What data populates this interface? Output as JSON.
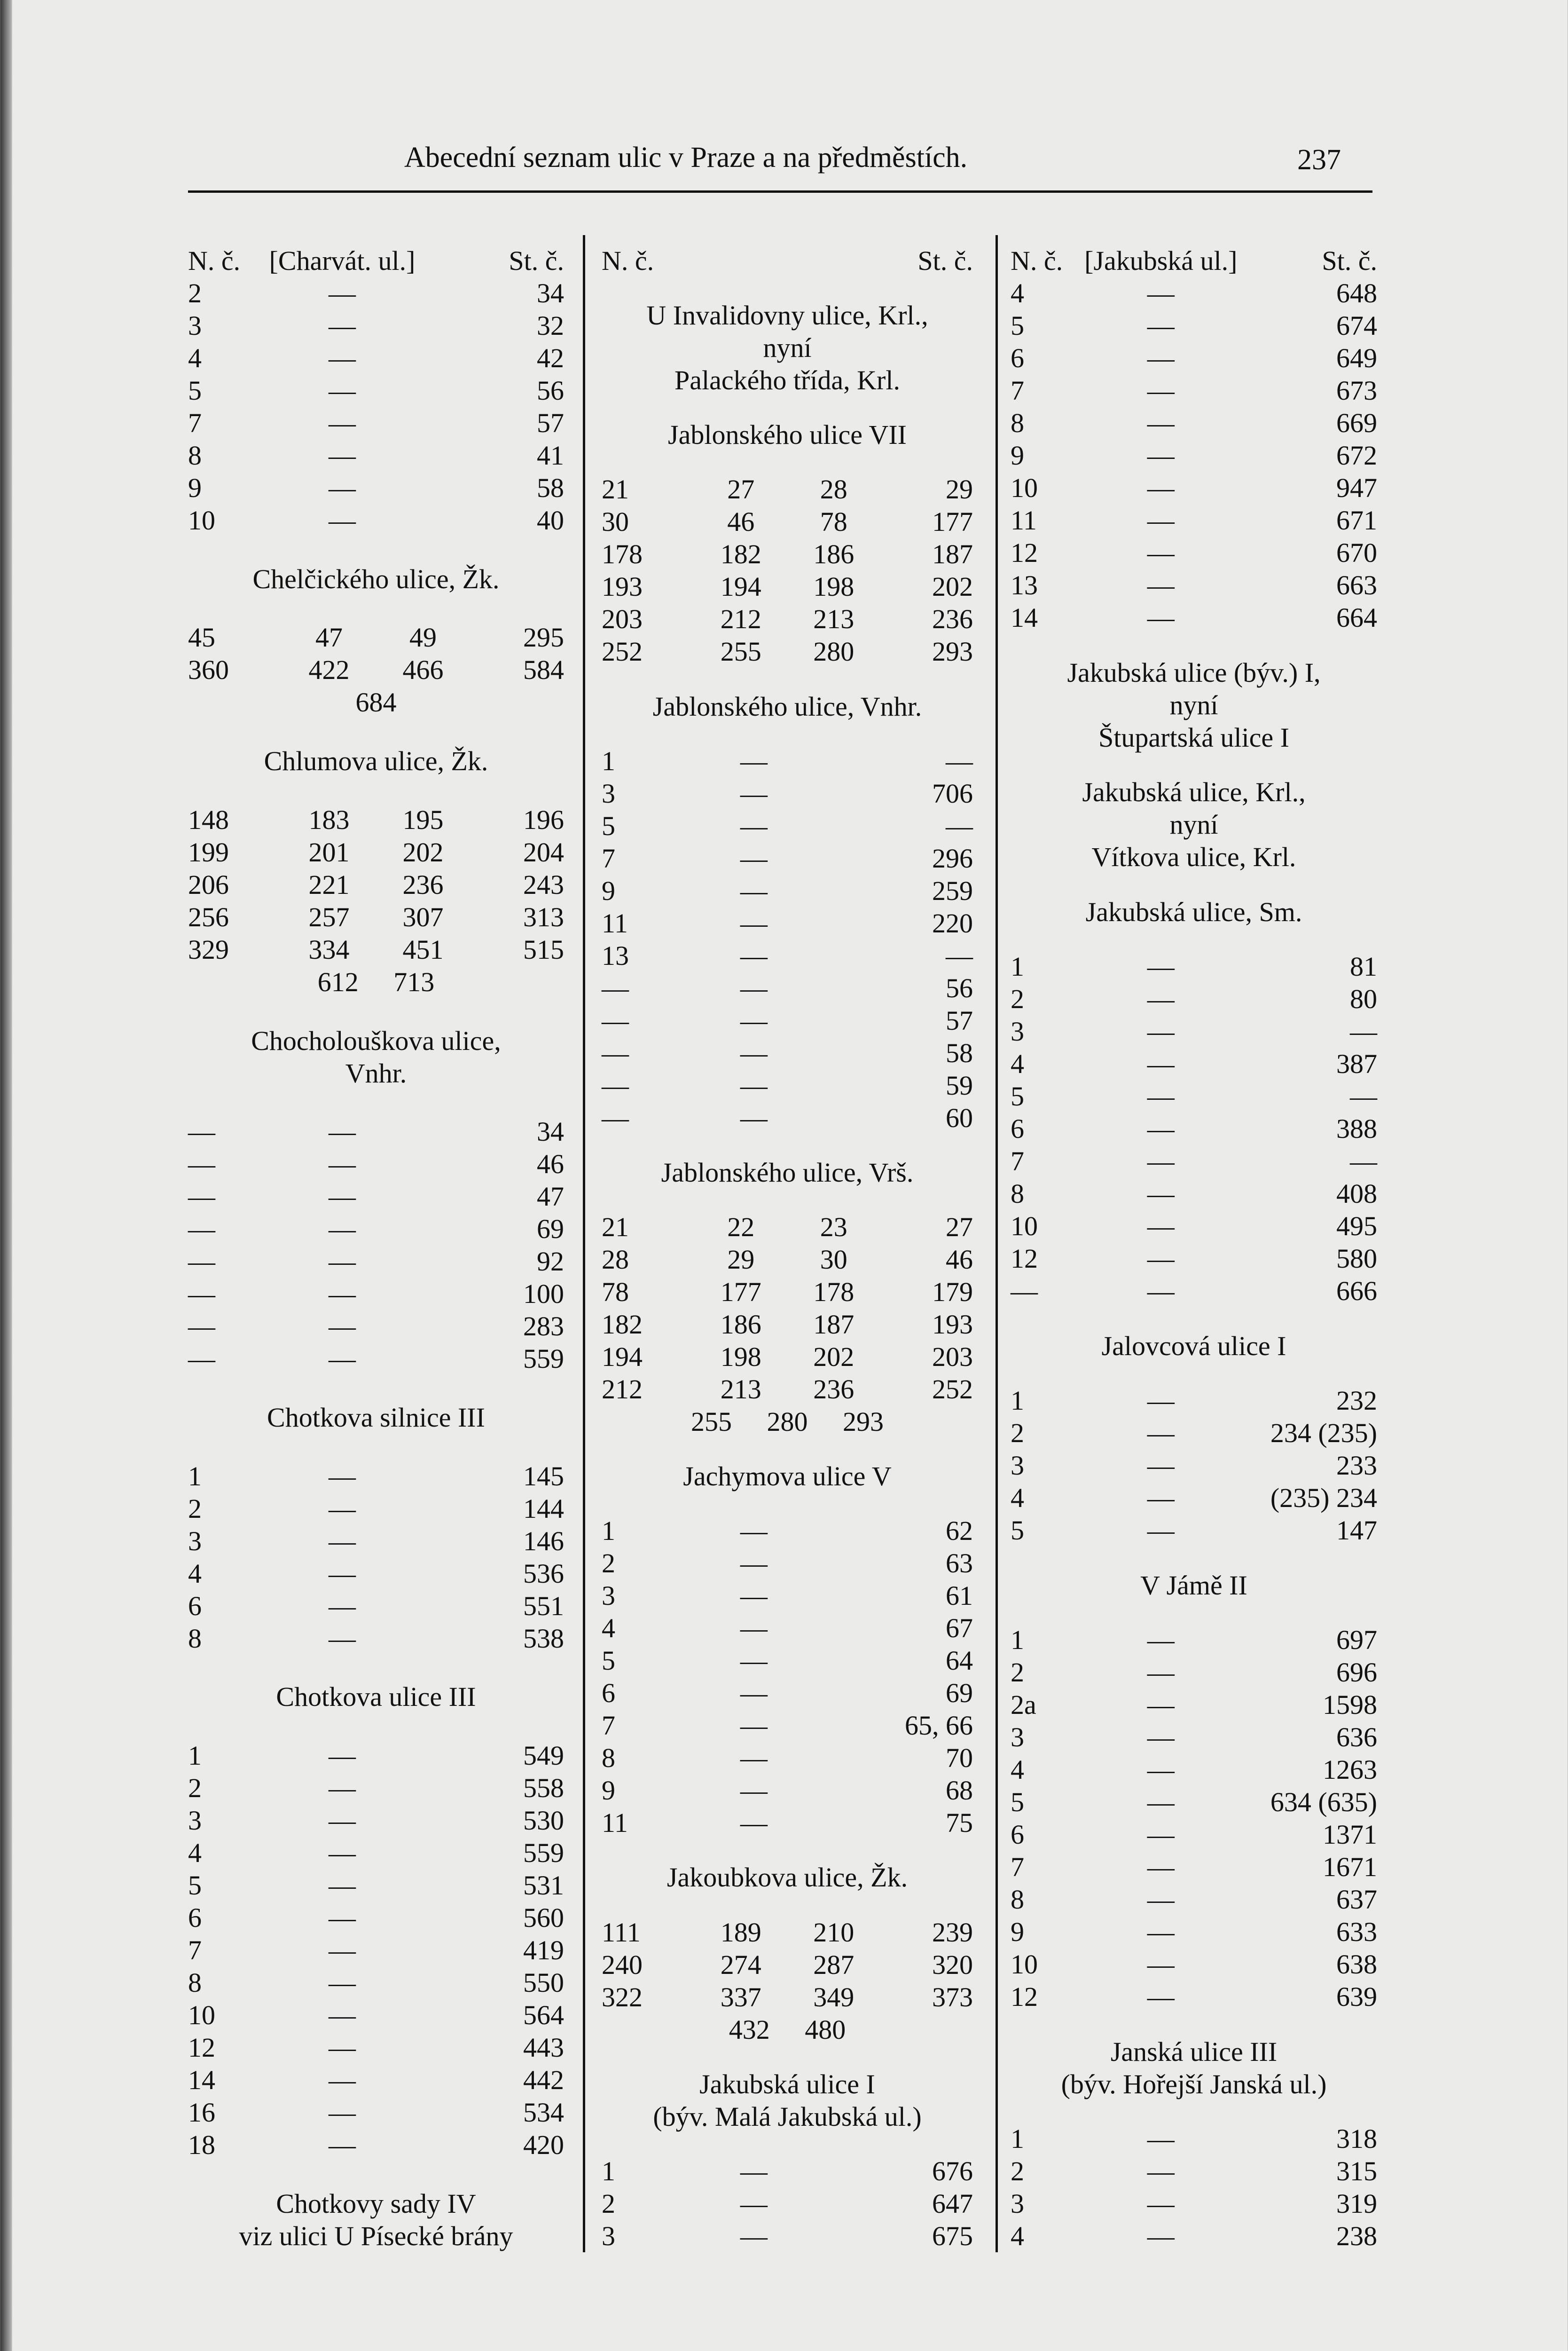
{
  "header": {
    "running_title": "Abecední seznam ulic v Praze a na předměstích.",
    "page_number": "237"
  },
  "columns": [
    {
      "blocks": [
        {
          "type": "t3",
          "rows": [
            [
              "N. č.",
              "[Charvát. ul.]",
              "St. č."
            ],
            [
              "2",
              "—",
              "34"
            ],
            [
              "3",
              "—",
              "32"
            ],
            [
              "4",
              "—",
              "42"
            ],
            [
              "5",
              "—",
              "56"
            ],
            [
              "7",
              "—",
              "57"
            ],
            [
              "8",
              "—",
              "41"
            ],
            [
              "9",
              "—",
              "58"
            ],
            [
              "10",
              "—",
              "40"
            ]
          ]
        },
        {
          "type": "heading",
          "lines": [
            "Chelčického ulice, Žk."
          ]
        },
        {
          "type": "t4",
          "rows": [
            [
              "45",
              "47",
              "49",
              "295"
            ],
            [
              "360",
              "422",
              "466",
              "584"
            ]
          ],
          "last": "684"
        },
        {
          "type": "heading",
          "lines": [
            "Chlumova ulice, Žk."
          ]
        },
        {
          "type": "t4",
          "rows": [
            [
              "148",
              "183",
              "195",
              "196"
            ],
            [
              "199",
              "201",
              "202",
              "204"
            ],
            [
              "206",
              "221",
              "236",
              "243"
            ],
            [
              "256",
              "257",
              "307",
              "313"
            ],
            [
              "329",
              "334",
              "451",
              "515"
            ]
          ],
          "last": "612 713"
        },
        {
          "type": "heading",
          "lines": [
            "Chocholouškova ulice,",
            "Vnhr."
          ]
        },
        {
          "type": "t3",
          "rows": [
            [
              "—",
              "—",
              "34"
            ],
            [
              "—",
              "—",
              "46"
            ],
            [
              "—",
              "—",
              "47"
            ],
            [
              "—",
              "—",
              "69"
            ],
            [
              "—",
              "—",
              "92"
            ],
            [
              "—",
              "—",
              "100"
            ],
            [
              "—",
              "—",
              "283"
            ],
            [
              "—",
              "—",
              "559"
            ]
          ]
        },
        {
          "type": "heading",
          "lines": [
            "Chotkova silnice III"
          ]
        },
        {
          "type": "t3",
          "rows": [
            [
              "1",
              "—",
              "145"
            ],
            [
              "2",
              "—",
              "144"
            ],
            [
              "3",
              "—",
              "146"
            ],
            [
              "4",
              "—",
              "536"
            ],
            [
              "6",
              "—",
              "551"
            ],
            [
              "8",
              "—",
              "538"
            ]
          ]
        },
        {
          "type": "heading",
          "lines": [
            "Chotkova ulice III"
          ]
        },
        {
          "type": "t3",
          "rows": [
            [
              "1",
              "—",
              "549"
            ],
            [
              "2",
              "—",
              "558"
            ],
            [
              "3",
              "—",
              "530"
            ],
            [
              "4",
              "—",
              "559"
            ],
            [
              "5",
              "—",
              "531"
            ],
            [
              "6",
              "—",
              "560"
            ],
            [
              "7",
              "—",
              "419"
            ],
            [
              "8",
              "—",
              "550"
            ],
            [
              "10",
              "—",
              "564"
            ],
            [
              "12",
              "—",
              "443"
            ],
            [
              "14",
              "—",
              "442"
            ],
            [
              "16",
              "—",
              "534"
            ],
            [
              "18",
              "—",
              "420"
            ]
          ]
        },
        {
          "type": "heading",
          "lines": [
            "Chotkovy sady IV",
            "viz ulici U Písecké brány"
          ]
        }
      ]
    },
    {
      "blocks": [
        {
          "type": "t3",
          "rows": [
            [
              "N. č.",
              "",
              "St. č."
            ]
          ]
        },
        {
          "type": "heading",
          "lines": [
            "U Invalidovny ulice, Krl.,",
            "nyní",
            "Palackého třída, Krl."
          ]
        },
        {
          "type": "heading",
          "lines": [
            "Jablonského ulice VII"
          ]
        },
        {
          "type": "t4",
          "rows": [
            [
              "21",
              "27",
              "28",
              "29"
            ],
            [
              "30",
              "46",
              "78",
              "177"
            ],
            [
              "178",
              "182",
              "186",
              "187"
            ],
            [
              "193",
              "194",
              "198",
              "202"
            ],
            [
              "203",
              "212",
              "213",
              "236"
            ],
            [
              "252",
              "255",
              "280",
              "293"
            ]
          ]
        },
        {
          "type": "heading",
          "lines": [
            "Jablonského ulice, Vnhr."
          ]
        },
        {
          "type": "t3",
          "rows": [
            [
              "1",
              "—",
              "—"
            ],
            [
              "3",
              "—",
              "706"
            ],
            [
              "5",
              "—",
              "—"
            ],
            [
              "7",
              "—",
              "296"
            ],
            [
              "9",
              "—",
              "259"
            ],
            [
              "11",
              "—",
              "220"
            ],
            [
              "13",
              "—",
              "—"
            ],
            [
              "—",
              "—",
              "56"
            ],
            [
              "—",
              "—",
              "57"
            ],
            [
              "—",
              "—",
              "58"
            ],
            [
              "—",
              "—",
              "59"
            ],
            [
              "—",
              "—",
              "60"
            ]
          ]
        },
        {
          "type": "heading",
          "lines": [
            "Jablonského ulice, Vrš."
          ]
        },
        {
          "type": "t4",
          "rows": [
            [
              "21",
              "22",
              "23",
              "27"
            ],
            [
              "28",
              "29",
              "30",
              "46"
            ],
            [
              "78",
              "177",
              "178",
              "179"
            ],
            [
              "182",
              "186",
              "187",
              "193"
            ],
            [
              "194",
              "198",
              "202",
              "203"
            ],
            [
              "212",
              "213",
              "236",
              "252"
            ]
          ],
          "last": "255 280 293"
        },
        {
          "type": "heading",
          "lines": [
            "Jachymova ulice V"
          ]
        },
        {
          "type": "t3",
          "rows": [
            [
              "1",
              "—",
              "62"
            ],
            [
              "2",
              "—",
              "63"
            ],
            [
              "3",
              "—",
              "61"
            ],
            [
              "4",
              "—",
              "67"
            ],
            [
              "5",
              "—",
              "64"
            ],
            [
              "6",
              "—",
              "69"
            ],
            [
              "7",
              "—",
              "65, 66"
            ],
            [
              "8",
              "—",
              "70"
            ],
            [
              "9",
              "—",
              "68"
            ],
            [
              "11",
              "—",
              "75"
            ]
          ]
        },
        {
          "type": "heading",
          "lines": [
            "Jakoubkova ulice, Žk."
          ]
        },
        {
          "type": "t4",
          "rows": [
            [
              "111",
              "189",
              "210",
              "239"
            ],
            [
              "240",
              "274",
              "287",
              "320"
            ],
            [
              "322",
              "337",
              "349",
              "373"
            ]
          ],
          "last": "432 480"
        },
        {
          "type": "heading",
          "lines": [
            "Jakubská ulice I",
            "(býv. Malá Jakubská ul.)"
          ]
        },
        {
          "type": "t3",
          "rows": [
            [
              "1",
              "—",
              "676"
            ],
            [
              "2",
              "—",
              "647"
            ],
            [
              "3",
              "—",
              "675"
            ]
          ]
        }
      ]
    },
    {
      "blocks": [
        {
          "type": "t3",
          "rows": [
            [
              "N. č.",
              "[Jakubská ul.]",
              "St. č."
            ],
            [
              "4",
              "—",
              "648"
            ],
            [
              "5",
              "—",
              "674"
            ],
            [
              "6",
              "—",
              "649"
            ],
            [
              "7",
              "—",
              "673"
            ],
            [
              "8",
              "—",
              "669"
            ],
            [
              "9",
              "—",
              "672"
            ],
            [
              "10",
              "—",
              "947"
            ],
            [
              "11",
              "—",
              "671"
            ],
            [
              "12",
              "—",
              "670"
            ],
            [
              "13",
              "—",
              "663"
            ],
            [
              "14",
              "—",
              "664"
            ]
          ]
        },
        {
          "type": "heading",
          "lines": [
            "Jakubská ulice (býv.) I,",
            "nyní",
            "Štupartská ulice I"
          ]
        },
        {
          "type": "heading",
          "lines": [
            "Jakubská ulice, Krl.,",
            "nyní",
            "Vítkova ulice, Krl."
          ]
        },
        {
          "type": "heading",
          "lines": [
            "Jakubská ulice, Sm."
          ]
        },
        {
          "type": "t3",
          "rows": [
            [
              "1",
              "—",
              "81"
            ],
            [
              "2",
              "—",
              "80"
            ],
            [
              "3",
              "—",
              "—"
            ],
            [
              "4",
              "—",
              "387"
            ],
            [
              "5",
              "—",
              "—"
            ],
            [
              "6",
              "—",
              "388"
            ],
            [
              "7",
              "—",
              "—"
            ],
            [
              "8",
              "—",
              "408"
            ],
            [
              "10",
              "—",
              "495"
            ],
            [
              "12",
              "—",
              "580"
            ],
            [
              "—",
              "—",
              "666"
            ]
          ]
        },
        {
          "type": "heading",
          "lines": [
            "Jalovcová ulice I"
          ]
        },
        {
          "type": "t3",
          "rows": [
            [
              "1",
              "—",
              "232"
            ],
            [
              "2",
              "—",
              "234 (235)"
            ],
            [
              "3",
              "—",
              "233"
            ],
            [
              "4",
              "—",
              "(235) 234"
            ],
            [
              "5",
              "—",
              "147"
            ]
          ]
        },
        {
          "type": "heading",
          "lines": [
            "V Jámě II"
          ]
        },
        {
          "type": "t3",
          "rows": [
            [
              "1",
              "—",
              "697"
            ],
            [
              "2",
              "—",
              "696"
            ],
            [
              "2a",
              "—",
              "1598"
            ],
            [
              "3",
              "—",
              "636"
            ],
            [
              "4",
              "—",
              "1263"
            ],
            [
              "5",
              "—",
              "634 (635)"
            ],
            [
              "6",
              "—",
              "1371"
            ],
            [
              "7",
              "—",
              "1671"
            ],
            [
              "8",
              "—",
              "637"
            ],
            [
              "9",
              "—",
              "633"
            ],
            [
              "10",
              "—",
              "638"
            ],
            [
              "12",
              "—",
              "639"
            ]
          ]
        },
        {
          "type": "heading",
          "lines": [
            "Janská ulice III",
            "(býv. Hořejší Janská ul.)"
          ]
        },
        {
          "type": "t3",
          "rows": [
            [
              "1",
              "—",
              "318"
            ],
            [
              "2",
              "—",
              "315"
            ],
            [
              "3",
              "—",
              "319"
            ],
            [
              "4",
              "—",
              "238"
            ]
          ]
        }
      ]
    }
  ]
}
